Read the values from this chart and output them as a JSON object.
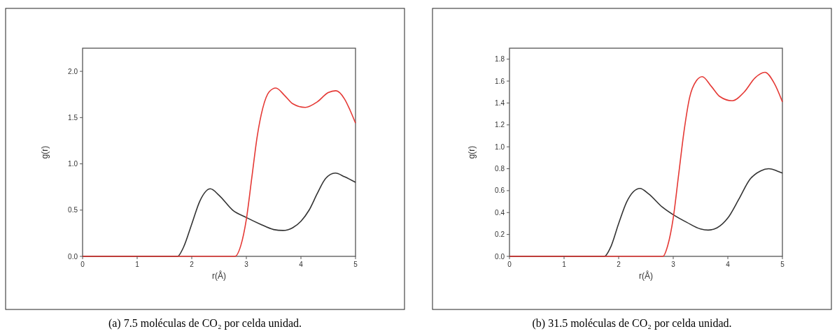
{
  "chart_data": [
    {
      "type": "line",
      "xlabel": "r(Å)",
      "ylabel": "g(r)",
      "xlim": [
        0,
        5
      ],
      "xticks": [
        0,
        1,
        2,
        3,
        4,
        5
      ],
      "ylim": [
        0,
        2.25
      ],
      "yticks": [
        {
          "value": 0,
          "label": "0.0"
        },
        {
          "value": 0.5,
          "label": "0.5"
        },
        {
          "value": 1,
          "label": "1.0"
        },
        {
          "value": 1.5,
          "label": "1.5"
        },
        {
          "value": 2,
          "label": "2.0"
        }
      ],
      "annotations": [
        "(a) 7.5 moléculas de CO₂ por celda unidad."
      ],
      "series": [
        {
          "color": "#333333",
          "x": [
            0,
            1.74,
            1.85,
            2.0,
            2.15,
            2.34,
            2.5,
            2.75,
            3.0,
            3.25,
            3.5,
            3.67,
            3.85,
            4.0,
            4.15,
            4.3,
            4.45,
            4.63,
            4.8,
            5.0
          ],
          "values": [
            0,
            0,
            0.1,
            0.35,
            0.6,
            0.73,
            0.66,
            0.5,
            0.42,
            0.35,
            0.29,
            0.28,
            0.31,
            0.38,
            0.5,
            0.68,
            0.84,
            0.9,
            0.86,
            0.8
          ]
        },
        {
          "color": "#e53935",
          "x": [
            0,
            2.79,
            2.9,
            3.0,
            3.1,
            3.2,
            3.3,
            3.42,
            3.54,
            3.7,
            3.85,
            4.08,
            4.3,
            4.5,
            4.64,
            4.8,
            4.9,
            5.0
          ],
          "values": [
            0,
            0,
            0.12,
            0.4,
            0.85,
            1.3,
            1.6,
            1.78,
            1.82,
            1.74,
            1.65,
            1.61,
            1.67,
            1.77,
            1.79,
            1.7,
            1.58,
            1.44
          ]
        }
      ]
    },
    {
      "type": "line",
      "xlabel": "r(Å)",
      "ylabel": "g(r)",
      "xlim": [
        0,
        5
      ],
      "xticks": [
        0,
        1,
        2,
        3,
        4,
        5
      ],
      "ylim": [
        0,
        1.9
      ],
      "yticks": [
        {
          "value": 0,
          "label": "0.0"
        },
        {
          "value": 0.2,
          "label": "0.2"
        },
        {
          "value": 0.4,
          "label": "0.4"
        },
        {
          "value": 0.6,
          "label": "0.6"
        },
        {
          "value": 0.8,
          "label": "0.8"
        },
        {
          "value": 1,
          "label": "1.0"
        },
        {
          "value": 1.2,
          "label": "1.2"
        },
        {
          "value": 1.4,
          "label": "1.4"
        },
        {
          "value": 1.6,
          "label": "1.6"
        },
        {
          "value": 1.8,
          "label": "1.8"
        }
      ],
      "annotations": [
        "(b) 31.5 moléculas de CO₂ por celda unidad."
      ],
      "series": [
        {
          "color": "#333333",
          "x": [
            0,
            1.74,
            1.85,
            2.0,
            2.15,
            2.39,
            2.55,
            2.8,
            3.0,
            3.25,
            3.5,
            3.64,
            3.8,
            4.0,
            4.2,
            4.4,
            4.6,
            4.75,
            4.9,
            5.0
          ],
          "values": [
            0,
            0,
            0.08,
            0.3,
            0.5,
            0.62,
            0.57,
            0.45,
            0.38,
            0.31,
            0.25,
            0.24,
            0.26,
            0.35,
            0.52,
            0.7,
            0.78,
            0.8,
            0.78,
            0.76
          ]
        },
        {
          "color": "#e53935",
          "x": [
            0,
            2.81,
            2.9,
            3.0,
            3.1,
            3.2,
            3.3,
            3.42,
            3.53,
            3.7,
            3.85,
            4.08,
            4.3,
            4.5,
            4.68,
            4.85,
            5.0
          ],
          "values": [
            0,
            0,
            0.1,
            0.35,
            0.75,
            1.15,
            1.45,
            1.6,
            1.64,
            1.55,
            1.46,
            1.42,
            1.5,
            1.63,
            1.68,
            1.58,
            1.41
          ]
        }
      ]
    }
  ]
}
